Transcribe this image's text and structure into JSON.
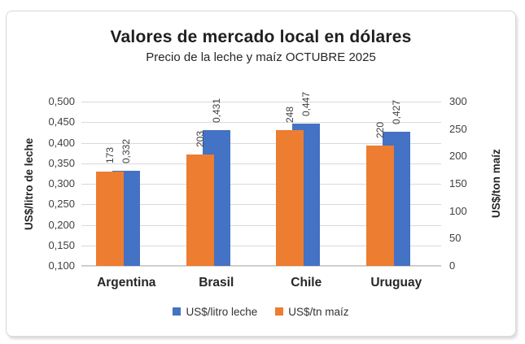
{
  "chart": {
    "title": "Valores de mercado local en dólares",
    "subtitle": "Precio de la leche y maíz OCTUBRE 2025"
  },
  "colors": {
    "leche_blue": "#4472C4",
    "maiz_orange": "#ED7D31",
    "gridline": "#D9D9D9",
    "axis_text": "#404040",
    "title_text": "#1F1F1F",
    "frame_border": "#D8D8D8"
  },
  "chart_data": {
    "type": "bar",
    "title": "Valores de mercado local en dólares",
    "subtitle": "Precio de la leche y maíz OCTUBRE 2025",
    "categories": [
      "Argentina",
      "Brasil",
      "Chile",
      "Uruguay"
    ],
    "series": [
      {
        "name": "US$/litro leche",
        "axis": "left",
        "color": "#4472C4",
        "values": [
          0.332,
          0.431,
          0.447,
          0.427
        ],
        "data_labels": [
          "0,332",
          "0,431",
          "0,447",
          "0,427"
        ]
      },
      {
        "name": "US$/tn maíz",
        "axis": "right",
        "color": "#ED7D31",
        "values": [
          173,
          203,
          248,
          220
        ],
        "data_labels": [
          "173",
          "203",
          "248",
          "220"
        ]
      }
    ],
    "left_axis": {
      "label": "US$/litro de leche",
      "min": 0.1,
      "max": 0.5,
      "step": 0.05,
      "tick_labels": [
        "0,500",
        "0,450",
        "0,400",
        "0,350",
        "0,300",
        "0,250",
        "0,200",
        "0,150",
        "0,100"
      ]
    },
    "right_axis": {
      "label": "US$/ton maíz",
      "min": 0,
      "max": 300,
      "step": 50,
      "tick_labels": [
        "300",
        "250",
        "200",
        "150",
        "100",
        "50",
        "0"
      ]
    },
    "grid": true,
    "legend_position": "bottom",
    "legend": [
      "US$/litro leche",
      "US$/tn maíz"
    ]
  }
}
